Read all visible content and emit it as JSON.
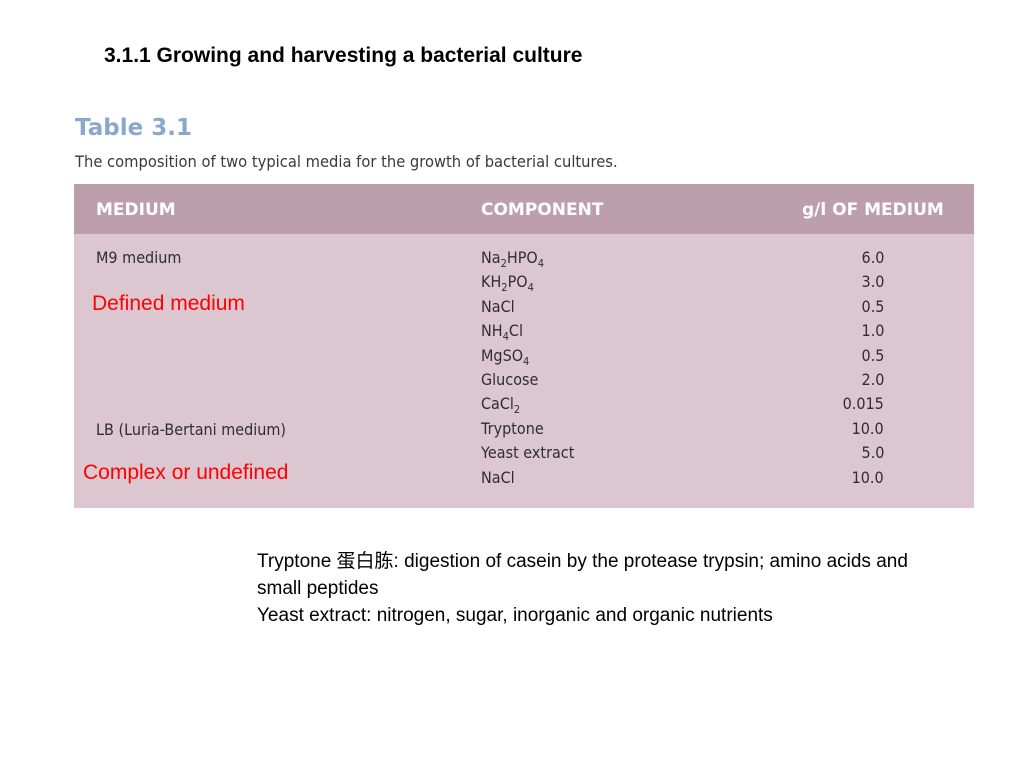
{
  "slide_title": "3.1.1 Growing and harvesting a bacterial culture",
  "table": {
    "heading": "Table 3.1",
    "caption": "The composition of two typical media for the growth of bacterial cultures.",
    "headers": {
      "medium": "MEDIUM",
      "component": "COMPONENT",
      "amount": "g/l OF MEDIUM"
    },
    "media": {
      "m9": "M9 medium",
      "lb": "LB (Luria-Bertani medium)"
    },
    "rows": [
      {
        "formula": [
          "Na",
          "2",
          "HPO",
          "4"
        ],
        "value": "6.0"
      },
      {
        "formula": [
          "KH",
          "2",
          "PO",
          "4"
        ],
        "value": "3.0"
      },
      {
        "formula": [
          "NaCl"
        ],
        "value": "0.5"
      },
      {
        "formula": [
          "NH",
          "4",
          "Cl"
        ],
        "value": "1.0"
      },
      {
        "formula": [
          "MgSO",
          "4"
        ],
        "value": "0.5"
      },
      {
        "formula": [
          "Glucose"
        ],
        "value": "2.0"
      },
      {
        "formula": [
          "CaCl",
          "2"
        ],
        "value": "0.015"
      },
      {
        "formula": [
          "Tryptone"
        ],
        "value": "10.0"
      },
      {
        "formula": [
          "Yeast extract"
        ],
        "value": "5.0"
      },
      {
        "formula": [
          "NaCl"
        ],
        "value": "10.0"
      }
    ]
  },
  "annotations": {
    "defined": "Defined medium",
    "complex": "Complex or undefined"
  },
  "notes": {
    "tryptone": "Tryptone 蛋白胨: digestion of casein by the protease trypsin; amino acids and small peptides",
    "yeast": "Yeast extract: nitrogen, sugar, inorganic and organic nutrients"
  },
  "colors": {
    "header_bg": "#bd9ead",
    "body_bg": "#dcc6cf",
    "heading_blue": "#8aa8cc",
    "annotation_red": "#ff0000"
  }
}
